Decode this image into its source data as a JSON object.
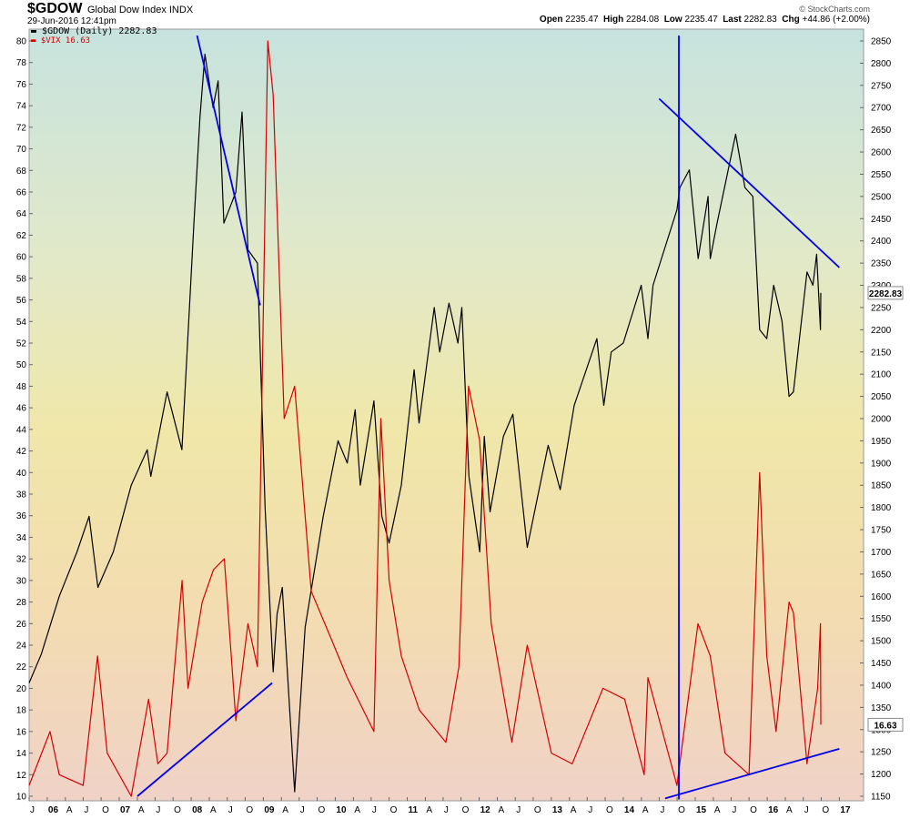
{
  "header": {
    "symbol": "$GDOW",
    "subtitle": "Global Dow Index  INDX",
    "date": "29-Jun-2016 12:41pm",
    "brand": "© StockCharts.com",
    "open_label": "Open",
    "open": "2235.47",
    "high_label": "High",
    "high": "2284.08",
    "low_label": "Low",
    "low": "2235.47",
    "last_label": "Last",
    "last": "2282.83",
    "chg_label": "Chg",
    "chg": "+44.86 (+2.00%)"
  },
  "legend": {
    "black": "$GDOW (Daily) 2282.83",
    "red": "$VIX 16.63"
  },
  "colors": {
    "gdow": "#000000",
    "vix": "#d40000",
    "trendline": "#0000ee"
  },
  "chart_data": {
    "type": "line",
    "x_axis": {
      "start": "2005-07",
      "end": "2017-02",
      "tick_labels": [
        "J",
        "06",
        "A",
        "J",
        "O",
        "07",
        "A",
        "J",
        "O",
        "08",
        "A",
        "J",
        "O",
        "09",
        "A",
        "J",
        "O",
        "10",
        "A",
        "J",
        "O",
        "11",
        "A",
        "J",
        "O",
        "12",
        "A",
        "J",
        "O",
        "13",
        "A",
        "J",
        "O",
        "14",
        "A",
        "J",
        "O",
        "15",
        "A",
        "J",
        "O",
        "16",
        "A",
        "J",
        "O",
        "17"
      ]
    },
    "y_left": {
      "label": "",
      "min": 10,
      "max": 80,
      "ticks": [
        10,
        12,
        14,
        16,
        18,
        20,
        22,
        24,
        26,
        28,
        30,
        32,
        34,
        36,
        38,
        40,
        42,
        44,
        46,
        48,
        50,
        52,
        54,
        56,
        58,
        60,
        62,
        64,
        66,
        68,
        70,
        72,
        74,
        76,
        78,
        80
      ]
    },
    "y_right": {
      "label": "",
      "min": 1150,
      "max": 2850,
      "ticks": [
        1150,
        1200,
        1250,
        1300,
        1350,
        1400,
        1450,
        1500,
        1550,
        1600,
        1650,
        1700,
        1750,
        1800,
        1850,
        1900,
        1950,
        2000,
        2050,
        2100,
        2150,
        2200,
        2250,
        2300,
        2350,
        2400,
        2450,
        2500,
        2550,
        2600,
        2650,
        2700,
        2750,
        2800,
        2850
      ]
    },
    "last_tags": {
      "gdow": "2282.83",
      "vix": "16.63"
    },
    "series": [
      {
        "name": "$GDOW (Daily)",
        "axis": "right",
        "color": "#000000",
        "points": [
          [
            "2005-07-01",
            1405
          ],
          [
            "2005-09-01",
            1470
          ],
          [
            "2005-12-01",
            1600
          ],
          [
            "2006-03-01",
            1700
          ],
          [
            "2006-05-01",
            1780
          ],
          [
            "2006-06-15",
            1620
          ],
          [
            "2006-09-01",
            1700
          ],
          [
            "2006-12-01",
            1850
          ],
          [
            "2007-02-20",
            1930
          ],
          [
            "2007-03-10",
            1870
          ],
          [
            "2007-06-01",
            2060
          ],
          [
            "2007-08-15",
            1930
          ],
          [
            "2007-10-15",
            2440
          ],
          [
            "2007-11-15",
            2680
          ],
          [
            "2007-12-10",
            2820
          ],
          [
            "2008-01-20",
            2700
          ],
          [
            "2008-02-15",
            2760
          ],
          [
            "2008-03-15",
            2440
          ],
          [
            "2008-05-15",
            2510
          ],
          [
            "2008-06-15",
            2690
          ],
          [
            "2008-07-15",
            2380
          ],
          [
            "2008-09-01",
            2350
          ],
          [
            "2008-10-10",
            1800
          ],
          [
            "2008-11-20",
            1430
          ],
          [
            "2008-12-10",
            1560
          ],
          [
            "2009-01-05",
            1620
          ],
          [
            "2009-03-09",
            1160
          ],
          [
            "2009-05-01",
            1530
          ],
          [
            "2009-08-01",
            1780
          ],
          [
            "2009-10-15",
            1950
          ],
          [
            "2009-12-01",
            1900
          ],
          [
            "2010-01-10",
            2020
          ],
          [
            "2010-02-05",
            1850
          ],
          [
            "2010-04-15",
            2040
          ],
          [
            "2010-05-25",
            1780
          ],
          [
            "2010-07-01",
            1720
          ],
          [
            "2010-09-01",
            1850
          ],
          [
            "2010-11-05",
            2110
          ],
          [
            "2010-11-30",
            1990
          ],
          [
            "2011-02-15",
            2250
          ],
          [
            "2011-03-15",
            2150
          ],
          [
            "2011-05-01",
            2260
          ],
          [
            "2011-06-15",
            2170
          ],
          [
            "2011-07-05",
            2250
          ],
          [
            "2011-08-10",
            1870
          ],
          [
            "2011-10-04",
            1700
          ],
          [
            "2011-10-27",
            1960
          ],
          [
            "2011-11-25",
            1790
          ],
          [
            "2012-02-01",
            1960
          ],
          [
            "2012-03-20",
            2010
          ],
          [
            "2012-06-01",
            1710
          ],
          [
            "2012-09-15",
            1940
          ],
          [
            "2012-11-15",
            1840
          ],
          [
            "2013-01-25",
            2030
          ],
          [
            "2013-05-20",
            2180
          ],
          [
            "2013-06-24",
            2030
          ],
          [
            "2013-08-01",
            2150
          ],
          [
            "2013-10-01",
            2170
          ],
          [
            "2013-12-31",
            2300
          ],
          [
            "2014-02-03",
            2180
          ],
          [
            "2014-03-01",
            2300
          ],
          [
            "2014-06-30",
            2470
          ],
          [
            "2014-07-15",
            2520
          ],
          [
            "2014-09-01",
            2560
          ],
          [
            "2014-10-16",
            2360
          ],
          [
            "2014-12-05",
            2500
          ],
          [
            "2014-12-16",
            2360
          ],
          [
            "2015-01-20",
            2440
          ],
          [
            "2015-04-24",
            2640
          ],
          [
            "2015-06-10",
            2520
          ],
          [
            "2015-07-20",
            2500
          ],
          [
            "2015-08-24",
            2200
          ],
          [
            "2015-09-29",
            2180
          ],
          [
            "2015-11-03",
            2300
          ],
          [
            "2015-12-15",
            2220
          ],
          [
            "2016-01-20",
            2050
          ],
          [
            "2016-02-11",
            2060
          ],
          [
            "2016-04-20",
            2330
          ],
          [
            "2016-05-20",
            2300
          ],
          [
            "2016-06-08",
            2370
          ],
          [
            "2016-06-27",
            2200
          ],
          [
            "2016-06-29",
            2282.83
          ]
        ]
      },
      {
        "name": "$VIX",
        "axis": "left",
        "color": "#d40000",
        "points": [
          [
            "2005-07-01",
            11
          ],
          [
            "2005-10-15",
            16
          ],
          [
            "2005-12-01",
            12
          ],
          [
            "2006-04-01",
            11
          ],
          [
            "2006-06-13",
            23
          ],
          [
            "2006-08-01",
            14
          ],
          [
            "2006-12-01",
            10
          ],
          [
            "2007-02-27",
            19
          ],
          [
            "2007-04-15",
            13
          ],
          [
            "2007-06-01",
            14
          ],
          [
            "2007-08-16",
            30
          ],
          [
            "2007-09-15",
            20
          ],
          [
            "2007-11-26",
            28
          ],
          [
            "2008-01-22",
            31
          ],
          [
            "2008-03-17",
            32
          ],
          [
            "2008-05-15",
            17
          ],
          [
            "2008-07-15",
            26
          ],
          [
            "2008-09-01",
            22
          ],
          [
            "2008-10-24",
            80
          ],
          [
            "2008-11-20",
            75
          ],
          [
            "2009-01-15",
            45
          ],
          [
            "2009-03-09",
            48
          ],
          [
            "2009-06-01",
            29
          ],
          [
            "2009-09-01",
            25
          ],
          [
            "2009-12-01",
            21
          ],
          [
            "2010-04-15",
            16
          ],
          [
            "2010-05-20",
            45
          ],
          [
            "2010-07-01",
            30
          ],
          [
            "2010-09-01",
            23
          ],
          [
            "2010-12-01",
            18
          ],
          [
            "2011-04-15",
            15
          ],
          [
            "2011-06-20",
            22
          ],
          [
            "2011-08-08",
            48
          ],
          [
            "2011-10-03",
            43
          ],
          [
            "2011-12-01",
            26
          ],
          [
            "2012-03-15",
            15
          ],
          [
            "2012-06-01",
            24
          ],
          [
            "2012-10-01",
            14
          ],
          [
            "2013-01-15",
            13
          ],
          [
            "2013-06-20",
            20
          ],
          [
            "2013-10-08",
            19
          ],
          [
            "2014-01-15",
            12
          ],
          [
            "2014-02-03",
            21
          ],
          [
            "2014-06-30",
            11
          ],
          [
            "2014-10-15",
            26
          ],
          [
            "2014-12-16",
            23
          ],
          [
            "2015-03-01",
            14
          ],
          [
            "2015-07-01",
            12
          ],
          [
            "2015-08-24",
            40
          ],
          [
            "2015-09-29",
            23
          ],
          [
            "2015-11-15",
            16
          ],
          [
            "2016-01-20",
            28
          ],
          [
            "2016-02-11",
            27
          ],
          [
            "2016-04-20",
            13
          ],
          [
            "2016-06-13",
            20
          ],
          [
            "2016-06-27",
            26
          ],
          [
            "2016-06-29",
            16.63
          ]
        ]
      }
    ],
    "trendlines": [
      {
        "axis": "left",
        "points": [
          [
            "2007-10-31",
            80.5
          ],
          [
            "2008-09-15",
            55.5
          ]
        ]
      },
      {
        "axis": "left",
        "points": [
          [
            "2007-01-01",
            10
          ],
          [
            "2008-11-15",
            20.5
          ]
        ]
      },
      {
        "axis": "right",
        "points": [
          [
            "2014-04-01",
            2720
          ],
          [
            "2016-10-01",
            2340
          ]
        ]
      },
      {
        "axis": "left",
        "points": [
          [
            "2014-05-01",
            9.8
          ],
          [
            "2016-10-01",
            14.4
          ]
        ]
      },
      {
        "axis": "left",
        "points": [
          [
            "2014-07-10",
            9.7
          ],
          [
            "2014-07-10",
            80.5
          ]
        ]
      }
    ]
  }
}
